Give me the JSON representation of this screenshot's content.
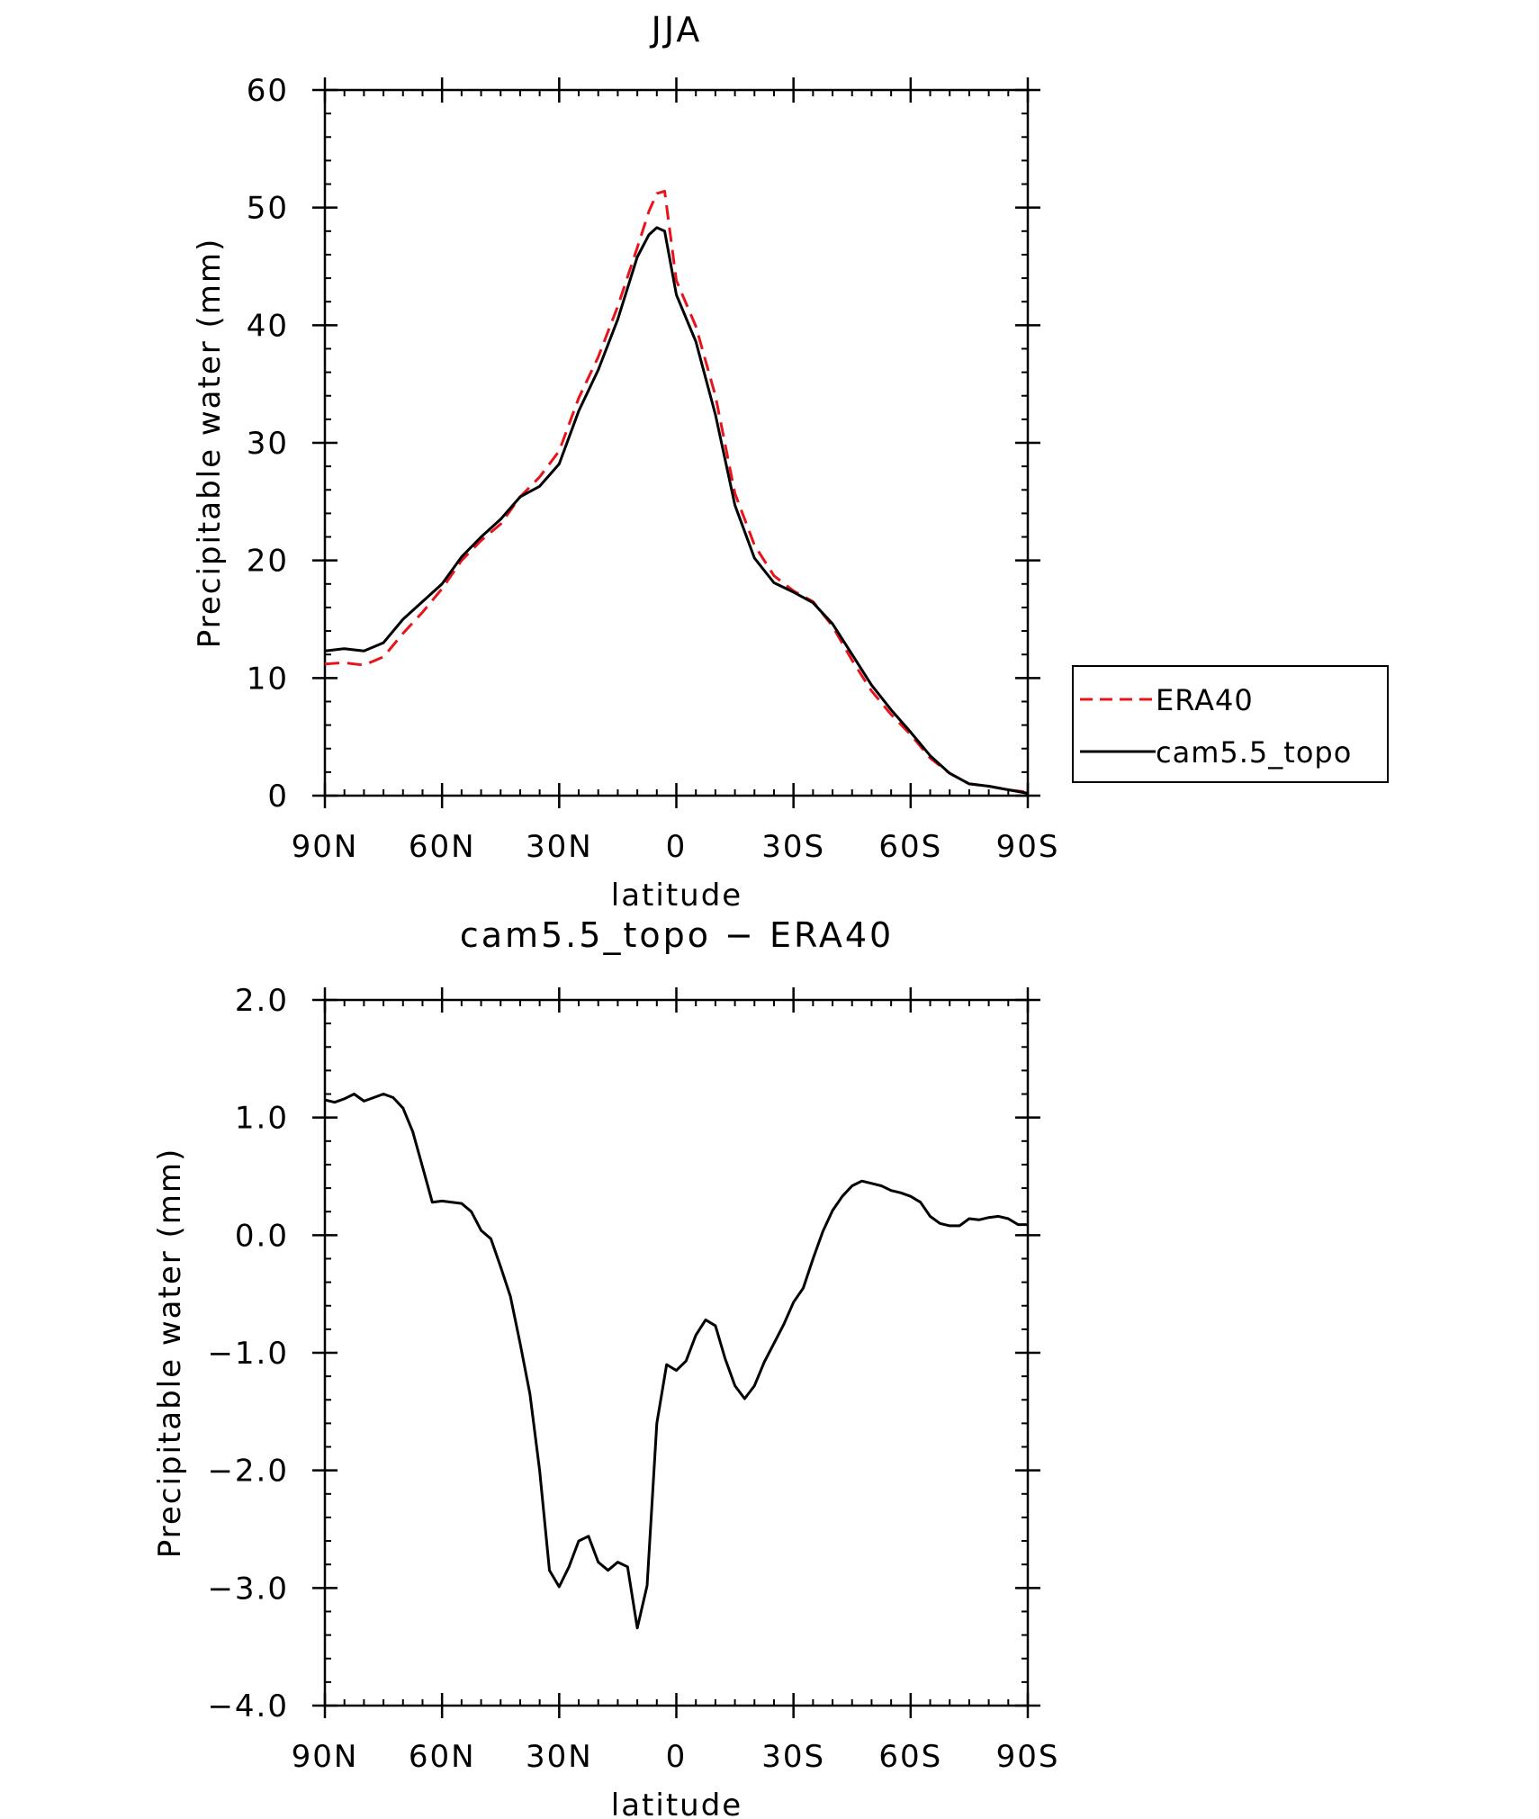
{
  "chart_data": [
    {
      "type": "line",
      "title": "JJA",
      "xlabel": "latitude",
      "ylabel": "Precipitable water (mm)",
      "xlim": [
        90,
        -90
      ],
      "ylim": [
        0,
        60
      ],
      "x_ticks": [
        90,
        60,
        30,
        0,
        -30,
        -60,
        -90
      ],
      "x_tick_labels": [
        "90N",
        "60N",
        "30N",
        "0",
        "30S",
        "60S",
        "90S"
      ],
      "y_ticks": [
        0,
        10,
        20,
        30,
        40,
        50,
        60
      ],
      "y_tick_labels": [
        "0",
        "10",
        "20",
        "30",
        "40",
        "50",
        "60"
      ],
      "legend_position": "right",
      "grid": false,
      "series": [
        {
          "name": "ERA40",
          "color": "#e8141c",
          "dash": "dashed",
          "x": [
            90,
            85,
            80,
            75,
            70,
            65,
            60,
            55,
            50,
            45,
            40,
            35,
            30,
            25,
            20,
            15,
            10,
            7,
            5,
            3,
            0,
            -5,
            -10,
            -15,
            -20,
            -25,
            -30,
            -35,
            -40,
            -45,
            -50,
            -55,
            -60,
            -65,
            -70,
            -75,
            -80,
            -85,
            -90
          ],
          "y": [
            11.2,
            11.3,
            11.1,
            11.8,
            13.8,
            15.6,
            17.6,
            20.0,
            21.7,
            23.1,
            25.4,
            27.1,
            29.3,
            33.8,
            37.3,
            41.6,
            46.6,
            49.7,
            51.2,
            51.4,
            43.8,
            39.9,
            34.0,
            25.7,
            21.3,
            18.7,
            17.4,
            16.5,
            14.4,
            11.5,
            8.9,
            6.9,
            5.2,
            3.2,
            1.9,
            1.0,
            0.8,
            0.5,
            0.3
          ]
        },
        {
          "name": "cam5.5_topo",
          "color": "#000000",
          "dash": "solid",
          "x": [
            90,
            85,
            80,
            75,
            70,
            65,
            60,
            55,
            50,
            45,
            40,
            35,
            30,
            25,
            20,
            15,
            10,
            7,
            5,
            3,
            0,
            -5,
            -10,
            -15,
            -20,
            -25,
            -30,
            -35,
            -40,
            -45,
            -50,
            -55,
            -60,
            -65,
            -70,
            -75,
            -80,
            -85,
            -90
          ],
          "y": [
            12.3,
            12.5,
            12.3,
            13.0,
            15.0,
            16.5,
            18.0,
            20.3,
            22.0,
            23.5,
            25.4,
            26.3,
            28.2,
            32.7,
            36.2,
            40.5,
            45.8,
            47.7,
            48.3,
            48.0,
            42.6,
            38.6,
            32.4,
            24.7,
            20.2,
            18.1,
            17.3,
            16.4,
            14.6,
            12.0,
            9.4,
            7.3,
            5.4,
            3.4,
            1.9,
            1.0,
            0.8,
            0.5,
            0.2
          ]
        }
      ]
    },
    {
      "type": "line",
      "title": "cam5.5_topo − ERA40",
      "xlabel": "latitude",
      "ylabel": "Precipitable water (mm)",
      "xlim": [
        90,
        -90
      ],
      "ylim": [
        -4.0,
        2.0
      ],
      "x_ticks": [
        90,
        60,
        30,
        0,
        -30,
        -60,
        -90
      ],
      "x_tick_labels": [
        "90N",
        "60N",
        "30N",
        "0",
        "30S",
        "60S",
        "90S"
      ],
      "y_ticks": [
        2.0,
        1.0,
        0.0,
        -1.0,
        -2.0,
        -3.0,
        -4.0
      ],
      "y_tick_labels": [
        "2.0",
        "1.0",
        "0.0",
        "−1.0",
        "−2.0",
        "−3.0",
        "−4.0"
      ],
      "grid": false,
      "series": [
        {
          "color": "#000000",
          "x": [
            90,
            87.5,
            85,
            82.5,
            80,
            77.5,
            75,
            72.5,
            70,
            67.5,
            65,
            62.5,
            60,
            57.5,
            55,
            52.5,
            50,
            47.5,
            45,
            42.5,
            40,
            37.5,
            35,
            32.5,
            30,
            27.5,
            25,
            22.5,
            20,
            17.5,
            15,
            12.5,
            10,
            7.5,
            5,
            2.5,
            0,
            -2.5,
            -5,
            -7.5,
            -10,
            -12.5,
            -15,
            -17.5,
            -20,
            -22.5,
            -25,
            -27.5,
            -30,
            -32.5,
            -35,
            -37.5,
            -40,
            -42.5,
            -45,
            -47.5,
            -50,
            -52.5,
            -55,
            -57.5,
            -60,
            -62.5,
            -65,
            -67.5,
            -70,
            -72.5,
            -75,
            -77.5,
            -80,
            -82.5,
            -85,
            -87.5,
            -90
          ],
          "y": [
            1.15,
            1.13,
            1.16,
            1.2,
            1.14,
            1.17,
            1.2,
            1.17,
            1.08,
            0.88,
            0.58,
            0.28,
            0.29,
            0.28,
            0.27,
            0.2,
            0.04,
            -0.03,
            -0.27,
            -0.52,
            -0.92,
            -1.35,
            -2.0,
            -2.85,
            -2.99,
            -2.82,
            -2.6,
            -2.56,
            -2.78,
            -2.85,
            -2.78,
            -2.82,
            -3.34,
            -2.98,
            -1.6,
            -1.1,
            -1.15,
            -1.07,
            -0.85,
            -0.72,
            -0.77,
            -1.05,
            -1.28,
            -1.39,
            -1.28,
            -1.08,
            -0.92,
            -0.76,
            -0.57,
            -0.45,
            -0.2,
            0.03,
            0.21,
            0.33,
            0.42,
            0.46,
            0.44,
            0.42,
            0.38,
            0.36,
            0.33,
            0.28,
            0.16,
            0.1,
            0.08,
            0.08,
            0.14,
            0.13,
            0.15,
            0.16,
            0.14,
            0.09,
            0.09
          ]
        }
      ]
    }
  ]
}
